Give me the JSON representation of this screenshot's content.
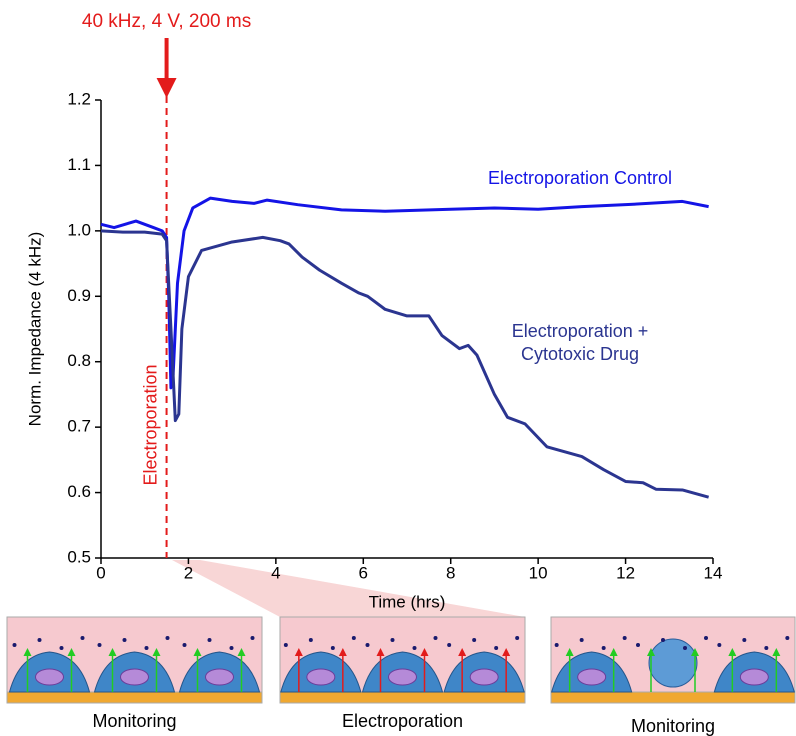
{
  "chart_data": {
    "type": "line",
    "xlabel": "Time (hrs)",
    "ylabel": "Norm. Impedance (4 kHz)",
    "xlim": [
      0,
      14
    ],
    "ylim": [
      0.5,
      1.2
    ],
    "xticks": [
      0,
      2,
      4,
      6,
      8,
      10,
      12,
      14
    ],
    "yticks": [
      {
        "value": 0.5,
        "label": "0.5"
      },
      {
        "value": 0.6,
        "label": "0.6"
      },
      {
        "value": 0.7,
        "label": "0.7"
      },
      {
        "value": 0.8,
        "label": "0.8"
      },
      {
        "value": 0.9,
        "label": "0.9"
      },
      {
        "value": 1.0,
        "label": "1.0"
      },
      {
        "value": 1.1,
        "label": "1.1"
      },
      {
        "value": 1.2,
        "label": "1.2"
      }
    ],
    "series": [
      {
        "name": "Electroporation Control",
        "color": "#1414e6",
        "x": [
          0,
          0.3,
          0.8,
          1.2,
          1.4,
          1.5,
          1.55,
          1.6,
          1.65,
          1.75,
          1.9,
          2.1,
          2.5,
          3.0,
          3.5,
          3.8,
          4.5,
          5.5,
          6.5,
          8,
          9,
          10,
          11,
          12,
          13.3,
          13.9
        ],
        "values": [
          1.01,
          1.005,
          1.015,
          1.005,
          1.0,
          0.99,
          0.9,
          0.76,
          0.78,
          0.92,
          1.0,
          1.035,
          1.05,
          1.045,
          1.042,
          1.047,
          1.04,
          1.032,
          1.03,
          1.033,
          1.035,
          1.033,
          1.037,
          1.04,
          1.045,
          1.037
        ]
      },
      {
        "name": "Electroporation + Cytotoxic Drug",
        "color": "#2b3590",
        "x": [
          0,
          0.5,
          1.0,
          1.4,
          1.5,
          1.6,
          1.7,
          1.78,
          1.85,
          2.0,
          2.3,
          3.0,
          3.7,
          4.1,
          4.3,
          4.6,
          5.0,
          5.5,
          5.9,
          6.1,
          6.5,
          7.0,
          7.5,
          7.8,
          8.2,
          8.4,
          8.6,
          9.0,
          9.3,
          9.7,
          10.2,
          11.0,
          11.5,
          12.0,
          12.4,
          12.7,
          13.3,
          13.9
        ],
        "values": [
          1.0,
          0.998,
          0.998,
          0.995,
          0.985,
          0.85,
          0.71,
          0.72,
          0.85,
          0.93,
          0.97,
          0.983,
          0.99,
          0.985,
          0.98,
          0.96,
          0.94,
          0.92,
          0.905,
          0.9,
          0.88,
          0.87,
          0.87,
          0.84,
          0.82,
          0.825,
          0.81,
          0.75,
          0.715,
          0.705,
          0.67,
          0.655,
          0.635,
          0.617,
          0.615,
          0.605,
          0.604,
          0.593
        ]
      }
    ],
    "event": {
      "x": 1.5,
      "label": "Electroporation",
      "title": "40 kHz, 4 V, 200 ms",
      "color": "#e31b1b"
    },
    "panels": [
      {
        "label": "Monitoring"
      },
      {
        "label": "Electroporation"
      },
      {
        "label": "Monitoring"
      }
    ]
  }
}
